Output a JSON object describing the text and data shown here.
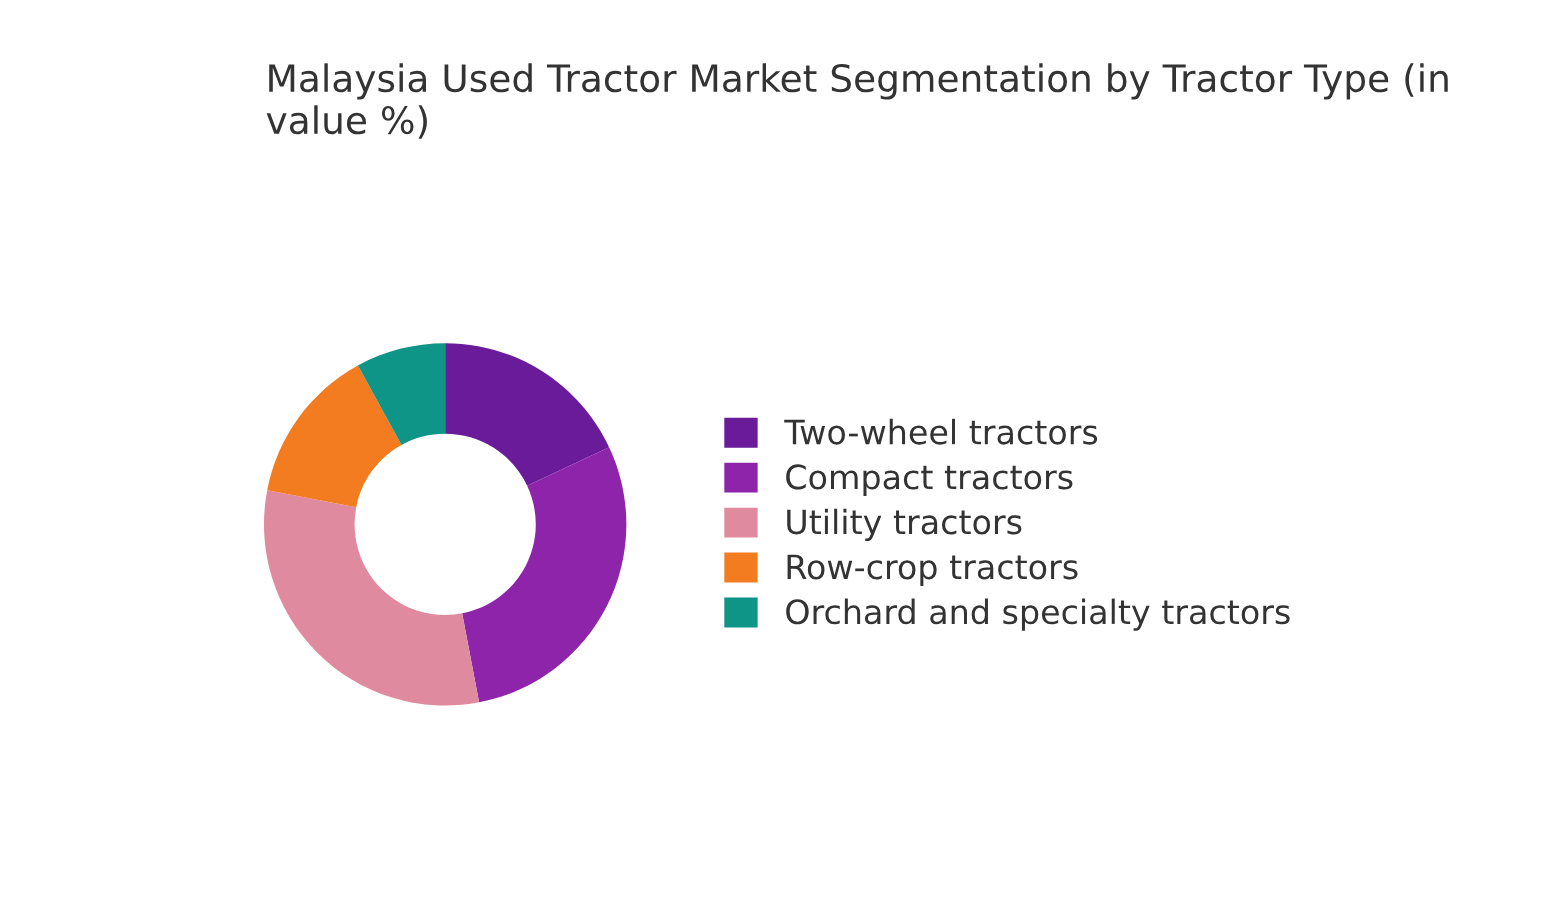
{
  "chart_data": {
    "type": "donut",
    "title": "Malaysia Used Tractor Market Segmentation by Tractor Type (in value %)",
    "categories": [
      "Two-wheel tractors",
      "Compact tractors",
      "Utility tractors",
      "Row-crop tractors",
      "Orchard and specialty tractors"
    ],
    "values": [
      18,
      29,
      31,
      14,
      8
    ],
    "colors": [
      "#6a1b9a",
      "#8e24aa",
      "#e08aa0",
      "#f47c20",
      "#0f9488"
    ],
    "legend": "right"
  }
}
